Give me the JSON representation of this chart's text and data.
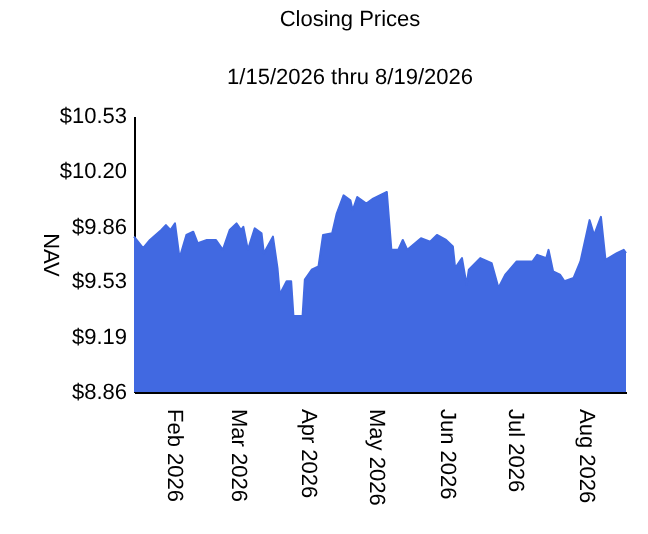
{
  "chart_data": {
    "type": "area",
    "title": "Closing Prices",
    "subtitle": "1/15/2026 thru 8/19/2026",
    "ylabel": "NAV",
    "x": [
      "2026-01-15",
      "2026-01-19",
      "2026-01-22",
      "2026-01-27",
      "2026-01-29",
      "2026-01-31",
      "2026-02-02",
      "2026-02-04",
      "2026-02-07",
      "2026-02-10",
      "2026-02-12",
      "2026-02-16",
      "2026-02-20",
      "2026-02-23",
      "2026-02-26",
      "2026-03-01",
      "2026-03-03",
      "2026-03-04",
      "2026-03-06",
      "2026-03-09",
      "2026-03-12",
      "2026-03-13",
      "2026-03-17",
      "2026-03-19",
      "2026-03-20",
      "2026-03-23",
      "2026-03-25",
      "2026-03-26",
      "2026-03-30",
      "2026-03-31",
      "2026-04-03",
      "2026-04-06",
      "2026-04-08",
      "2026-04-12",
      "2026-04-14",
      "2026-04-17",
      "2026-04-20",
      "2026-04-21",
      "2026-04-23",
      "2026-04-27",
      "2026-04-30",
      "2026-05-06",
      "2026-05-08",
      "2026-05-11",
      "2026-05-13",
      "2026-05-15",
      "2026-05-21",
      "2026-05-25",
      "2026-05-28",
      "2026-06-01",
      "2026-06-04",
      "2026-06-05",
      "2026-06-08",
      "2026-06-10",
      "2026-06-11",
      "2026-06-16",
      "2026-06-21",
      "2026-06-24",
      "2026-06-27",
      "2026-07-02",
      "2026-07-09",
      "2026-07-11",
      "2026-07-15",
      "2026-07-16",
      "2026-07-18",
      "2026-07-21",
      "2026-07-23",
      "2026-07-27",
      "2026-07-30",
      "2026-08-03",
      "2026-08-05",
      "2026-08-08",
      "2026-08-10",
      "2026-08-15",
      "2026-08-18",
      "2026-08-19"
    ],
    "series": [
      {
        "color": "#4169e1",
        "values": [
          9.8,
          9.73,
          9.78,
          9.84,
          9.87,
          9.84,
          9.88,
          9.67,
          9.81,
          9.83,
          9.76,
          9.78,
          9.78,
          9.72,
          9.84,
          9.88,
          9.84,
          9.86,
          9.72,
          9.85,
          9.82,
          9.7,
          9.8,
          9.61,
          9.45,
          9.53,
          9.53,
          9.32,
          9.32,
          9.54,
          9.6,
          9.62,
          9.81,
          9.82,
          9.94,
          10.05,
          10.02,
          9.96,
          10.04,
          10.0,
          10.03,
          10.07,
          9.72,
          9.72,
          9.78,
          9.72,
          9.79,
          9.77,
          9.81,
          9.78,
          9.74,
          9.61,
          9.67,
          9.51,
          9.6,
          9.67,
          9.64,
          9.49,
          9.57,
          9.65,
          9.65,
          9.69,
          9.67,
          9.72,
          9.59,
          9.57,
          9.53,
          9.55,
          9.65,
          9.9,
          9.81,
          9.92,
          9.66,
          9.7,
          9.72,
          9.7
        ]
      }
    ],
    "xlim": [
      "2026-01-15",
      "2026-08-19"
    ],
    "xticks": [
      {
        "value": "2026-02-01",
        "label": "Feb 2026"
      },
      {
        "value": "2026-03-01",
        "label": "Mar 2026"
      },
      {
        "value": "2026-04-01",
        "label": "Apr 2026"
      },
      {
        "value": "2026-05-01",
        "label": "May 2026"
      },
      {
        "value": "2026-06-01",
        "label": "Jun 2026"
      },
      {
        "value": "2026-07-01",
        "label": "Jul 2026"
      },
      {
        "value": "2026-08-01",
        "label": "Aug 2026"
      }
    ],
    "ylim": [
      8.86,
      10.53
    ],
    "yticks": [
      {
        "value": 8.86,
        "label": "$8.86"
      },
      {
        "value": 9.19,
        "label": "$9.19"
      },
      {
        "value": 9.53,
        "label": "$9.53"
      },
      {
        "value": 9.86,
        "label": "$9.86"
      },
      {
        "value": 10.2,
        "label": "$10.20"
      },
      {
        "value": 10.53,
        "label": "$10.53"
      }
    ],
    "grid": false
  }
}
